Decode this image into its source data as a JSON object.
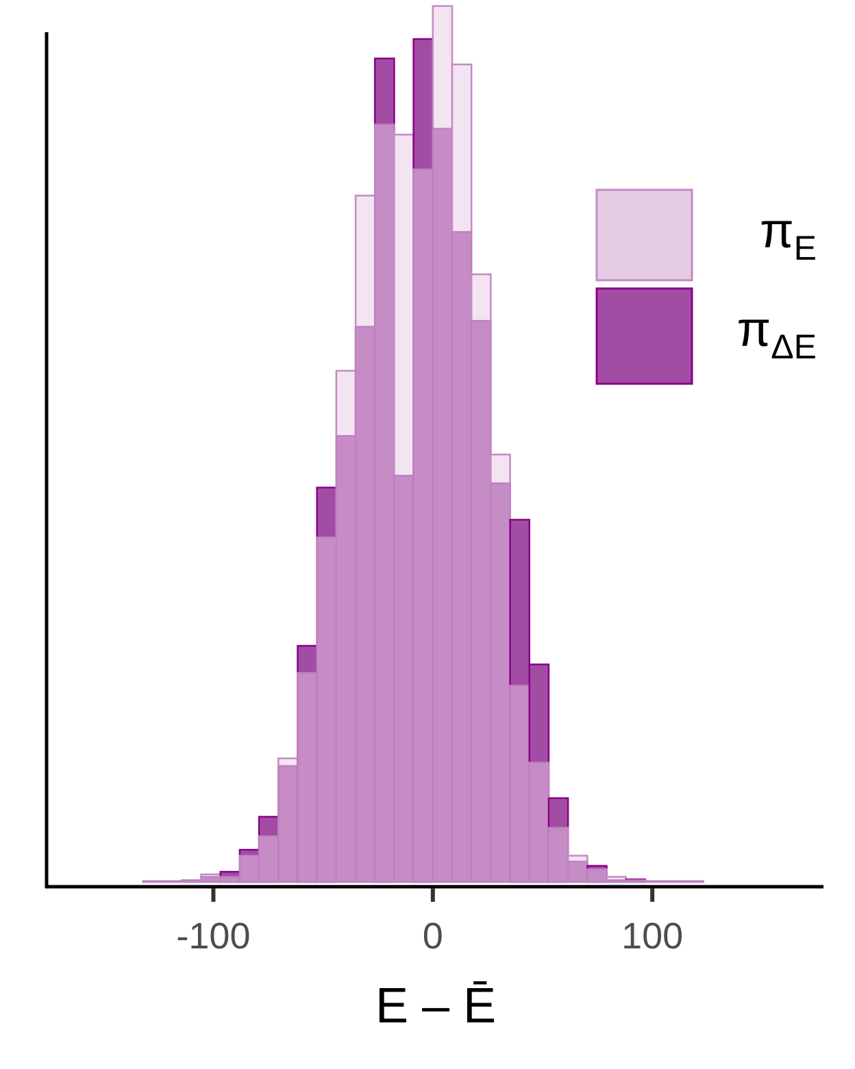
{
  "chart_data": {
    "type": "bar",
    "subtype": "overlaid histogram",
    "bin_width": 8.8,
    "bin_centers": [
      -127.6,
      -118.8,
      -110.0,
      -101.2,
      -92.4,
      -83.6,
      -74.8,
      -66.0,
      -57.2,
      -48.4,
      -39.6,
      -30.8,
      -22.0,
      -13.2,
      -4.4,
      4.4,
      13.2,
      22.0,
      30.8,
      39.6,
      48.4,
      57.2,
      66.0,
      74.8,
      83.6,
      92.4,
      101.2,
      110.0,
      118.8
    ],
    "series": [
      {
        "name": "π_E",
        "values": [
          0.1,
          0.1,
          0.2,
          0.9,
          0.6,
          3.1,
          5.4,
          14.6,
          24.7,
          40.7,
          60.4,
          81.1,
          89.5,
          88.3,
          84.2,
          103.5,
          96.6,
          71.8,
          50.5,
          23.2,
          14.1,
          6.4,
          3.1,
          1.5,
          0.6,
          0.2,
          0.1,
          0.1,
          0.1
        ],
        "color": "#e5cce4",
        "border": "#c48ac5"
      },
      {
        "name": "π_ΔE",
        "values": [
          0.1,
          0.1,
          0.2,
          0.6,
          1.2,
          3.8,
          7.7,
          13.7,
          27.9,
          46.6,
          52.7,
          65.6,
          97.3,
          48.0,
          99.6,
          89.0,
          76.8,
          66.3,
          47.1,
          42.8,
          25.7,
          9.9,
          2.4,
          1.9,
          0.2,
          0.3,
          0.1,
          0.1,
          0.1
        ],
        "color": "#a34ca4",
        "border": "#880088"
      }
    ],
    "overlap_color": "#c68cc6",
    "xlabel": "E – Ē",
    "ylabel": "",
    "xlim": [
      -176,
      178
    ],
    "ylim": [
      0,
      100
    ],
    "x_ticks": [
      -100,
      0,
      100
    ],
    "x_tick_labels": [
      "-100",
      "0",
      "100"
    ],
    "legend": {
      "position": "top-right",
      "entries": [
        {
          "symbol": "π",
          "subscript": "E"
        },
        {
          "symbol": "π",
          "subscript": "ΔE"
        }
      ]
    },
    "grid": false
  }
}
